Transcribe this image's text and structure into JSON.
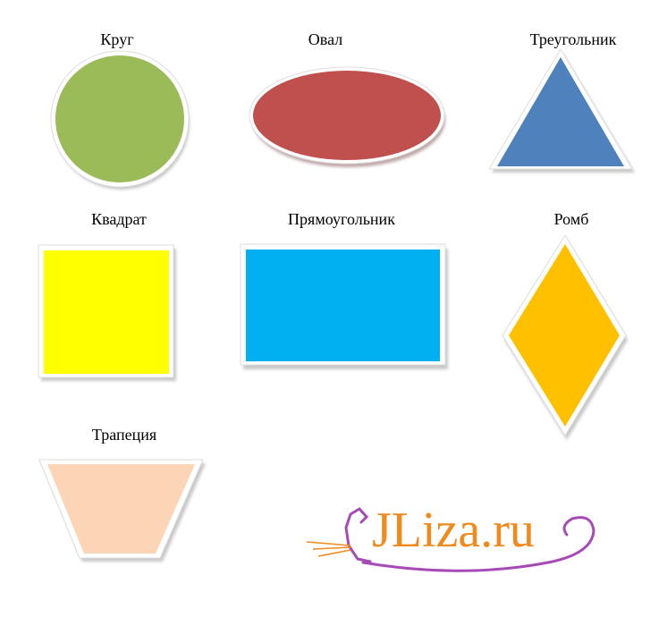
{
  "shapes": {
    "circle": {
      "label": "Круг",
      "color": "#9BBB59"
    },
    "oval": {
      "label": "Овал",
      "color": "#C0504D"
    },
    "triangle": {
      "label": "Треугольник",
      "color": "#4F81BD"
    },
    "square": {
      "label": "Квадрат",
      "color": "#FFFF00"
    },
    "rectangle": {
      "label": "Прямоугольник",
      "color": "#00B0F0"
    },
    "rhombus": {
      "label": "Ромб",
      "color": "#FFC000"
    },
    "trapezoid": {
      "label": "Трапеция",
      "color": "#FBD5B5"
    }
  },
  "watermark": {
    "text": "JLiza.ru",
    "color": "#F08A1C",
    "accent": "#A64BB6",
    "icon": "cat-icon"
  }
}
